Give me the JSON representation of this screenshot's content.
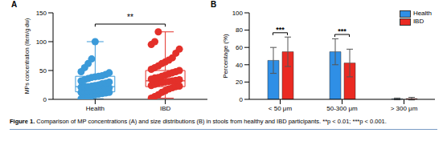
{
  "chart_data": [
    {
      "type": "box",
      "title": "A",
      "y_label": "MPs concentration (item/g dw)",
      "categories": [
        "Health",
        "IBD"
      ],
      "ylim": [
        0,
        150
      ],
      "yticks": [
        0,
        50,
        100,
        150
      ],
      "series": [
        {
          "name": "Health",
          "color": "#3b9ad9",
          "min": 1,
          "q1": 13,
          "median": 22,
          "q3": 40,
          "max": 100,
          "points": [
            1,
            3,
            5,
            6,
            8,
            9,
            10,
            11,
            12,
            12,
            13,
            14,
            15,
            16,
            17,
            18,
            19,
            20,
            21,
            22,
            22,
            23,
            24,
            25,
            27,
            28,
            30,
            32,
            34,
            36,
            38,
            39,
            40,
            41,
            43,
            46,
            48,
            55,
            62,
            70,
            100
          ]
        },
        {
          "name": "IBD",
          "color": "#e3302a",
          "min": 2,
          "q1": 22,
          "median": 32,
          "q3": 50,
          "max": 117,
          "points": [
            2,
            5,
            8,
            12,
            15,
            18,
            20,
            22,
            23,
            24,
            26,
            28,
            29,
            30,
            31,
            32,
            33,
            34,
            35,
            37,
            38,
            40,
            42,
            44,
            46,
            48,
            50,
            52,
            55,
            58,
            62,
            65,
            68,
            72,
            80,
            87,
            95,
            100,
            117
          ]
        }
      ],
      "annotations": [
        {
          "between": [
            "Health",
            "IBD"
          ],
          "text": "**"
        }
      ]
    },
    {
      "type": "bar",
      "title": "B",
      "y_label": "Percentage (%)",
      "categories": [
        "< 50 μm",
        "50-300 μm",
        "> 300 μm"
      ],
      "ylim": [
        0,
        100
      ],
      "yticks": [
        0,
        20,
        40,
        60,
        80,
        100
      ],
      "legend": "upper right",
      "series": [
        {
          "name": "Health",
          "color": "#2f8fe6",
          "values": [
            45,
            55,
            0.5
          ],
          "errors": [
            15,
            15,
            1
          ]
        },
        {
          "name": "IBD",
          "color": "#ea2a22",
          "values": [
            55,
            42,
            0.8
          ],
          "errors": [
            17,
            16,
            1.5
          ]
        }
      ],
      "annotations": [
        {
          "category": "< 50 μm",
          "text": "***"
        },
        {
          "category": "50-300 μm",
          "text": "***"
        }
      ]
    }
  ],
  "caption": {
    "label": "Figure 1.",
    "text": "Comparison of MP concentrations (A) and size distributions (B) in stools from healthy and IBD participants. **p < 0.01; ***p < 0.001."
  }
}
